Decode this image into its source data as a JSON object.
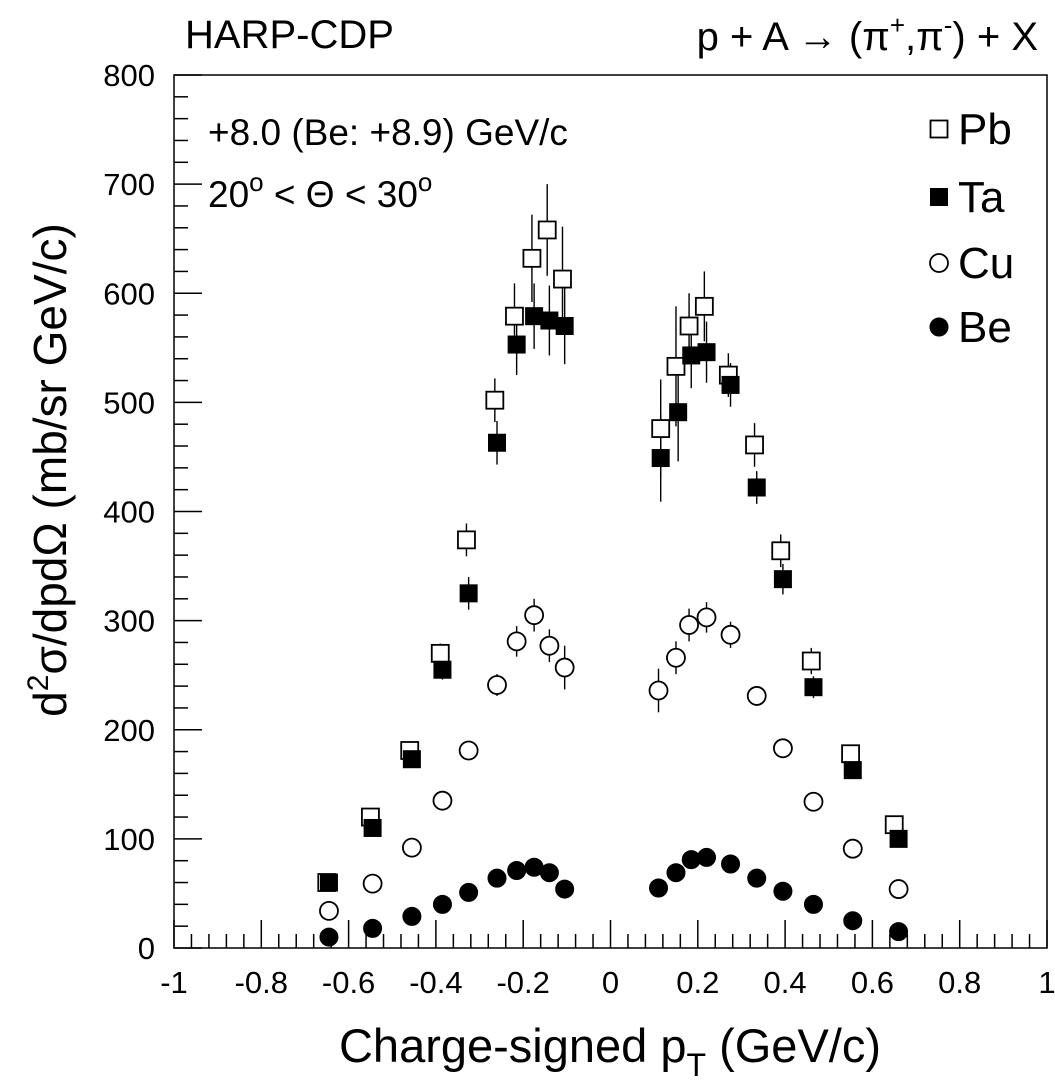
{
  "header": {
    "left": "HARP-CDP",
    "right_parts": {
      "p": "p + A ",
      "arrow": "→",
      "open": " (π",
      "sup1": "+",
      "comma": ",π",
      "sup2": "-",
      "close": ") + X"
    }
  },
  "annotations": {
    "beam": "+8.0 (Be: +8.9) GeV/c",
    "angle": {
      "lo": "20",
      "lo_sup": "o",
      "mid": " < Θ < ",
      "hi": "30",
      "hi_sup": "o"
    }
  },
  "axes": {
    "xlabel": {
      "main": "Charge-signed p",
      "sub": "T",
      "tail": " (GeV/c)"
    },
    "ylabel": {
      "d": "d",
      "sup": "2",
      "rest": "σ/dpdΩ  (mb/sr GeV/c)"
    }
  },
  "chart_data": {
    "type": "scatter",
    "xlim": [
      -1,
      1
    ],
    "ylim": [
      0,
      800
    ],
    "x_ticks": [
      "-1",
      "-0.8",
      "-0.6",
      "-0.4",
      "-0.2",
      "0",
      "0.2",
      "0.4",
      "0.6",
      "0.8",
      "1"
    ],
    "y_ticks": [
      "0",
      "100",
      "200",
      "300",
      "400",
      "500",
      "600",
      "700",
      "800"
    ],
    "legend_position": "top-right",
    "series": [
      {
        "name": "Pb",
        "marker": "open-square",
        "color": "#000000",
        "points": [
          [
            -0.65,
            60,
            0
          ],
          [
            -0.55,
            120,
            4
          ],
          [
            -0.46,
            181,
            5
          ],
          [
            -0.39,
            270,
            9
          ],
          [
            -0.33,
            374,
            15
          ],
          [
            -0.265,
            502,
            20
          ],
          [
            -0.22,
            579,
            30
          ],
          [
            -0.18,
            632,
            40
          ],
          [
            -0.145,
            658,
            42
          ],
          [
            -0.11,
            613,
            48
          ],
          [
            0.115,
            476,
            45
          ],
          [
            0.15,
            533,
            55
          ],
          [
            0.18,
            570,
            30
          ],
          [
            0.215,
            588,
            32
          ],
          [
            0.27,
            525,
            20
          ],
          [
            0.33,
            461,
            20
          ],
          [
            0.39,
            364,
            15
          ],
          [
            0.46,
            263,
            12
          ],
          [
            0.55,
            178,
            8
          ],
          [
            0.65,
            113,
            5
          ]
        ]
      },
      {
        "name": "Ta",
        "marker": "filled-square",
        "color": "#000000",
        "points": [
          [
            -0.645,
            60,
            0
          ],
          [
            -0.545,
            110,
            4
          ],
          [
            -0.455,
            173,
            5
          ],
          [
            -0.385,
            255,
            9
          ],
          [
            -0.325,
            325,
            15
          ],
          [
            -0.26,
            463,
            20
          ],
          [
            -0.215,
            553,
            28
          ],
          [
            -0.175,
            579,
            30
          ],
          [
            -0.14,
            575,
            32
          ],
          [
            -0.105,
            570,
            35
          ],
          [
            0.115,
            449,
            40
          ],
          [
            0.155,
            491,
            45
          ],
          [
            0.185,
            543,
            30
          ],
          [
            0.22,
            546,
            28
          ],
          [
            0.275,
            516,
            20
          ],
          [
            0.335,
            422,
            15
          ],
          [
            0.395,
            338,
            14
          ],
          [
            0.465,
            239,
            10
          ],
          [
            0.555,
            163,
            6
          ],
          [
            0.66,
            100,
            4
          ]
        ]
      },
      {
        "name": "Cu",
        "marker": "open-circle",
        "color": "#000000",
        "points": [
          [
            -0.645,
            34,
            0
          ],
          [
            -0.545,
            59,
            0
          ],
          [
            -0.455,
            92,
            0
          ],
          [
            -0.385,
            135,
            0
          ],
          [
            -0.325,
            181,
            4
          ],
          [
            -0.26,
            241,
            10
          ],
          [
            -0.215,
            281,
            14
          ],
          [
            -0.175,
            305,
            15
          ],
          [
            -0.14,
            277,
            15
          ],
          [
            -0.105,
            257,
            20
          ],
          [
            0.11,
            236,
            20
          ],
          [
            0.15,
            266,
            15
          ],
          [
            0.18,
            296,
            15
          ],
          [
            0.22,
            303,
            14
          ],
          [
            0.275,
            287,
            12
          ],
          [
            0.335,
            231,
            4
          ],
          [
            0.395,
            183,
            4
          ],
          [
            0.465,
            134,
            0
          ],
          [
            0.555,
            91,
            0
          ],
          [
            0.66,
            54,
            0
          ]
        ]
      },
      {
        "name": "Be",
        "marker": "filled-circle",
        "color": "#000000",
        "points": [
          [
            -0.645,
            10,
            0
          ],
          [
            -0.545,
            18,
            0
          ],
          [
            -0.455,
            29,
            0
          ],
          [
            -0.385,
            40,
            0
          ],
          [
            -0.325,
            51,
            0
          ],
          [
            -0.26,
            64,
            0
          ],
          [
            -0.215,
            71,
            0
          ],
          [
            -0.175,
            74,
            0
          ],
          [
            -0.14,
            69,
            0
          ],
          [
            -0.105,
            54,
            0
          ],
          [
            0.11,
            55,
            0
          ],
          [
            0.15,
            69,
            0
          ],
          [
            0.185,
            81,
            0
          ],
          [
            0.22,
            83,
            0
          ],
          [
            0.275,
            77,
            0
          ],
          [
            0.335,
            64,
            0
          ],
          [
            0.395,
            52,
            0
          ],
          [
            0.465,
            40,
            0
          ],
          [
            0.555,
            25,
            0
          ],
          [
            0.66,
            15,
            0
          ]
        ]
      }
    ]
  }
}
